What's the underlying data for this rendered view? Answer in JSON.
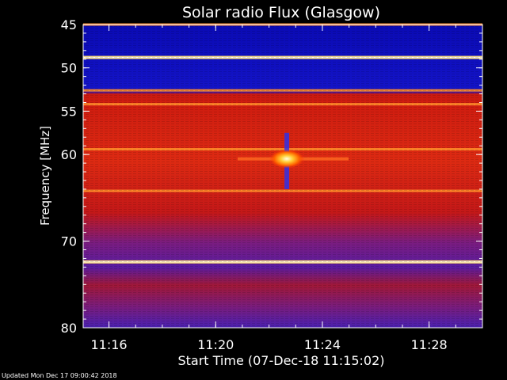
{
  "title": "Solar radio Flux (Glasgow)",
  "footer": "Updated Mon Dec 17 09:00:42 2018",
  "chart_data": {
    "type": "heatmap",
    "title": "Solar radio Flux (Glasgow)",
    "xlabel": "Start Time (07-Dec-18 11:15:02)",
    "ylabel": "Frequency [MHz]",
    "x_ticks": [
      "11:16",
      "11:20",
      "11:24",
      "11:28"
    ],
    "y_ticks": [
      45,
      50,
      55,
      60,
      70,
      80
    ],
    "xlim": [
      "11:15:02",
      "11:30:00"
    ],
    "ylim": [
      45,
      80
    ],
    "colormap": [
      "#00008b",
      "#2020e0",
      "#6020a0",
      "#c01010",
      "#ff3300",
      "#ff9900",
      "#ffffc0"
    ],
    "bands": [
      {
        "f": 45.0,
        "level": "orange"
      },
      {
        "f": 48.8,
        "level": "bright"
      },
      {
        "f": 52.6,
        "level": "orange"
      },
      {
        "f": 54.2,
        "level": "orange"
      },
      {
        "f": 59.4,
        "level": "orange"
      },
      {
        "f": 64.2,
        "level": "orange"
      },
      {
        "f": 72.4,
        "level": "bright"
      }
    ],
    "burst": {
      "time": "11:22:40",
      "f": 60.5
    }
  }
}
